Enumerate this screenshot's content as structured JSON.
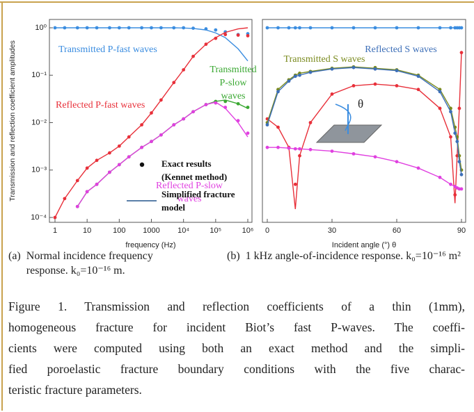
{
  "chart_data": [
    {
      "type": "line",
      "xscale": "log",
      "yscale": "log",
      "xlabel": "frequency (Hz)",
      "ylabel": "Transmission and reflection coefficient amplitudes",
      "xlim": [
        1,
        1000000
      ],
      "ylim": [
        0.0001,
        1
      ],
      "xticks": [
        1,
        10,
        100,
        1000,
        {
          "value": 10000,
          "label": "10⁴"
        },
        {
          "value": 100000,
          "label": "10⁵"
        },
        {
          "value": 1000000,
          "label": "10⁶"
        }
      ],
      "yticks": [
        {
          "value": 1,
          "label": "10⁰"
        },
        {
          "value": 0.1,
          "label": "10⁻¹"
        },
        {
          "value": 0.01,
          "label": "10⁻²"
        },
        {
          "value": 0.001,
          "label": "10⁻³"
        },
        {
          "value": 0.0001,
          "label": "10⁻⁴"
        }
      ],
      "legend": [
        {
          "name": "Exact results (Kennet method)",
          "marker": "dot",
          "color": "#111111"
        },
        {
          "name": "Simplified fracture model",
          "marker": "line",
          "color": "#5a7fa8"
        }
      ],
      "x": [
        1,
        2,
        5,
        10,
        20,
        50,
        100,
        200,
        500,
        1000,
        2000,
        5000,
        10000,
        20000,
        50000,
        100000,
        200000,
        500000,
        1000000
      ],
      "series": [
        {
          "name": "Transmitted P-fast waves",
          "color": "#3b8de0",
          "values": [
            1,
            1,
            1,
            1,
            1,
            1,
            1,
            1,
            1,
            1,
            1,
            1,
            0.99,
            0.97,
            0.9,
            0.78,
            0.62,
            0.36,
            0.2
          ],
          "exact_values": [
            1,
            1,
            1,
            1,
            1,
            1,
            1,
            1,
            1,
            1,
            1,
            1,
            1,
            0.98,
            0.95,
            0.9,
            0.82,
            0.72,
            0.75
          ]
        },
        {
          "name": "Reflected P-fast waves",
          "color": "#e8303a",
          "values": [
            0.0001,
            0.00025,
            0.0006,
            0.0011,
            0.0016,
            0.0023,
            0.0032,
            0.005,
            0.009,
            0.016,
            0.03,
            0.07,
            0.13,
            0.25,
            0.45,
            0.62,
            0.8,
            0.95,
            1
          ],
          "exact_values": [
            0.0001,
            0.00025,
            0.0006,
            0.0011,
            0.0016,
            0.0023,
            0.0032,
            0.005,
            0.009,
            0.016,
            0.03,
            0.07,
            0.13,
            0.25,
            0.45,
            0.6,
            0.72,
            0.7,
            0.68
          ]
        },
        {
          "name": "Transmitted P-slow waves",
          "color": "#3aa832",
          "values": [
            null,
            null,
            0.00017,
            0.00035,
            0.0005,
            0.0009,
            0.0013,
            0.0019,
            0.003,
            0.004,
            0.0055,
            0.009,
            0.012,
            0.017,
            0.024,
            0.028,
            0.03,
            0.025,
            0.02
          ],
          "exact_values": [
            null,
            null,
            0.00017,
            0.00035,
            0.0005,
            0.0009,
            0.0013,
            0.0019,
            0.003,
            0.004,
            0.0055,
            0.009,
            0.012,
            0.017,
            0.024,
            0.028,
            0.028,
            0.025,
            0.021
          ]
        },
        {
          "name": "Reflected P-slow waves",
          "color": "#e040e0",
          "values": [
            null,
            null,
            0.00017,
            0.00035,
            0.0005,
            0.0009,
            0.0013,
            0.0019,
            0.003,
            0.004,
            0.0055,
            0.009,
            0.012,
            0.017,
            0.024,
            0.027,
            0.02,
            0.01,
            0.005
          ],
          "exact_values": [
            null,
            null,
            0.00017,
            0.00035,
            0.0005,
            0.0009,
            0.0013,
            0.0019,
            0.003,
            0.004,
            0.0055,
            0.009,
            0.012,
            0.017,
            0.024,
            0.026,
            0.021,
            0.011,
            0.006
          ]
        }
      ]
    },
    {
      "type": "line",
      "yscale": "log",
      "xlabel": "Incident angle (°) θ",
      "inset_label": "θ",
      "xlim": [
        0,
        90
      ],
      "ylim": [
        0.0001,
        1
      ],
      "xticks": [
        0,
        30,
        60,
        90
      ],
      "x": [
        0,
        5,
        10,
        13,
        15,
        20,
        30,
        40,
        50,
        60,
        70,
        80,
        85,
        87,
        88,
        89,
        90
      ],
      "series": [
        {
          "color": "#3b8de0",
          "values": [
            1,
            1,
            1,
            1,
            1,
            1,
            1,
            1,
            1,
            1,
            1,
            1,
            1,
            1,
            1,
            1,
            1
          ],
          "exact_values": [
            1,
            1,
            1,
            1,
            1,
            1,
            1,
            1,
            1,
            1,
            1,
            1,
            1,
            1,
            1,
            1,
            1
          ]
        },
        {
          "color": "#e8303a",
          "values": [
            0.012,
            0.008,
            0.003,
            0.00015,
            0.002,
            0.01,
            0.04,
            0.06,
            0.065,
            0.06,
            0.05,
            0.02,
            0.005,
            0.0002,
            0.002,
            0.02,
            0.3
          ],
          "exact_values": [
            0.012,
            0.008,
            0.003,
            0.0005,
            0.002,
            0.01,
            0.04,
            0.06,
            0.065,
            0.06,
            0.05,
            0.02,
            0.005,
            0.0003,
            0.002,
            0.02,
            0.3
          ]
        },
        {
          "name": "Transmitted S waves",
          "color": "#7a8a1e",
          "values": [
            0.01,
            0.05,
            0.08,
            0.1,
            0.11,
            0.12,
            0.14,
            0.15,
            0.14,
            0.13,
            0.1,
            0.05,
            0.02,
            0.008,
            0.005,
            0.002,
            0.001
          ],
          "exact_values": [
            0.01,
            0.05,
            0.08,
            0.1,
            0.11,
            0.12,
            0.14,
            0.15,
            0.145,
            0.13,
            0.1,
            0.05,
            0.02,
            0.008,
            0.005,
            0.002,
            0.001
          ]
        },
        {
          "name": "Reflected S waves",
          "color": "#3d6fb8",
          "values": [
            0.009,
            0.045,
            0.075,
            0.095,
            0.1,
            0.115,
            0.135,
            0.145,
            0.135,
            0.125,
            0.095,
            0.045,
            0.017,
            0.006,
            0.004,
            0.0015,
            0.0008
          ],
          "exact_values": [
            0.009,
            0.045,
            0.075,
            0.095,
            0.1,
            0.115,
            0.135,
            0.145,
            0.135,
            0.125,
            0.095,
            0.045,
            0.017,
            0.006,
            0.004,
            0.0015,
            0.0008
          ]
        },
        {
          "color": "#e040e0",
          "values": [
            0.003,
            0.003,
            0.0029,
            0.0028,
            0.0028,
            0.0027,
            0.0025,
            0.0022,
            0.0019,
            0.0015,
            0.0011,
            0.0007,
            0.0005,
            0.00045,
            0.00042,
            0.0004,
            0.0004
          ],
          "exact_values": [
            0.003,
            0.003,
            0.0029,
            0.0028,
            0.0028,
            0.0027,
            0.0025,
            0.0022,
            0.0019,
            0.0015,
            0.0011,
            0.0007,
            0.0005,
            0.00045,
            0.00042,
            0.0004,
            0.0004
          ]
        }
      ]
    }
  ],
  "subcaptions": [
    {
      "label": "(a)",
      "text": "Normal incidence frequency response. k₀=10⁻¹⁶ m."
    },
    {
      "label": "(b)",
      "text": "1 kHz angle-of-incidence response. k₀=10⁻¹⁶ m²"
    }
  ],
  "caption": [
    "Figure 1. Transmission and reflection coefficients of a thin (1mm),",
    "homogeneous fracture for incident Biot’s fast P-waves. The coeffi-",
    "cients were computed using both an exact method and the simpli-",
    "fied poroelastic fracture boundary conditions with the five charac-",
    "teristic fracture parameters."
  ]
}
